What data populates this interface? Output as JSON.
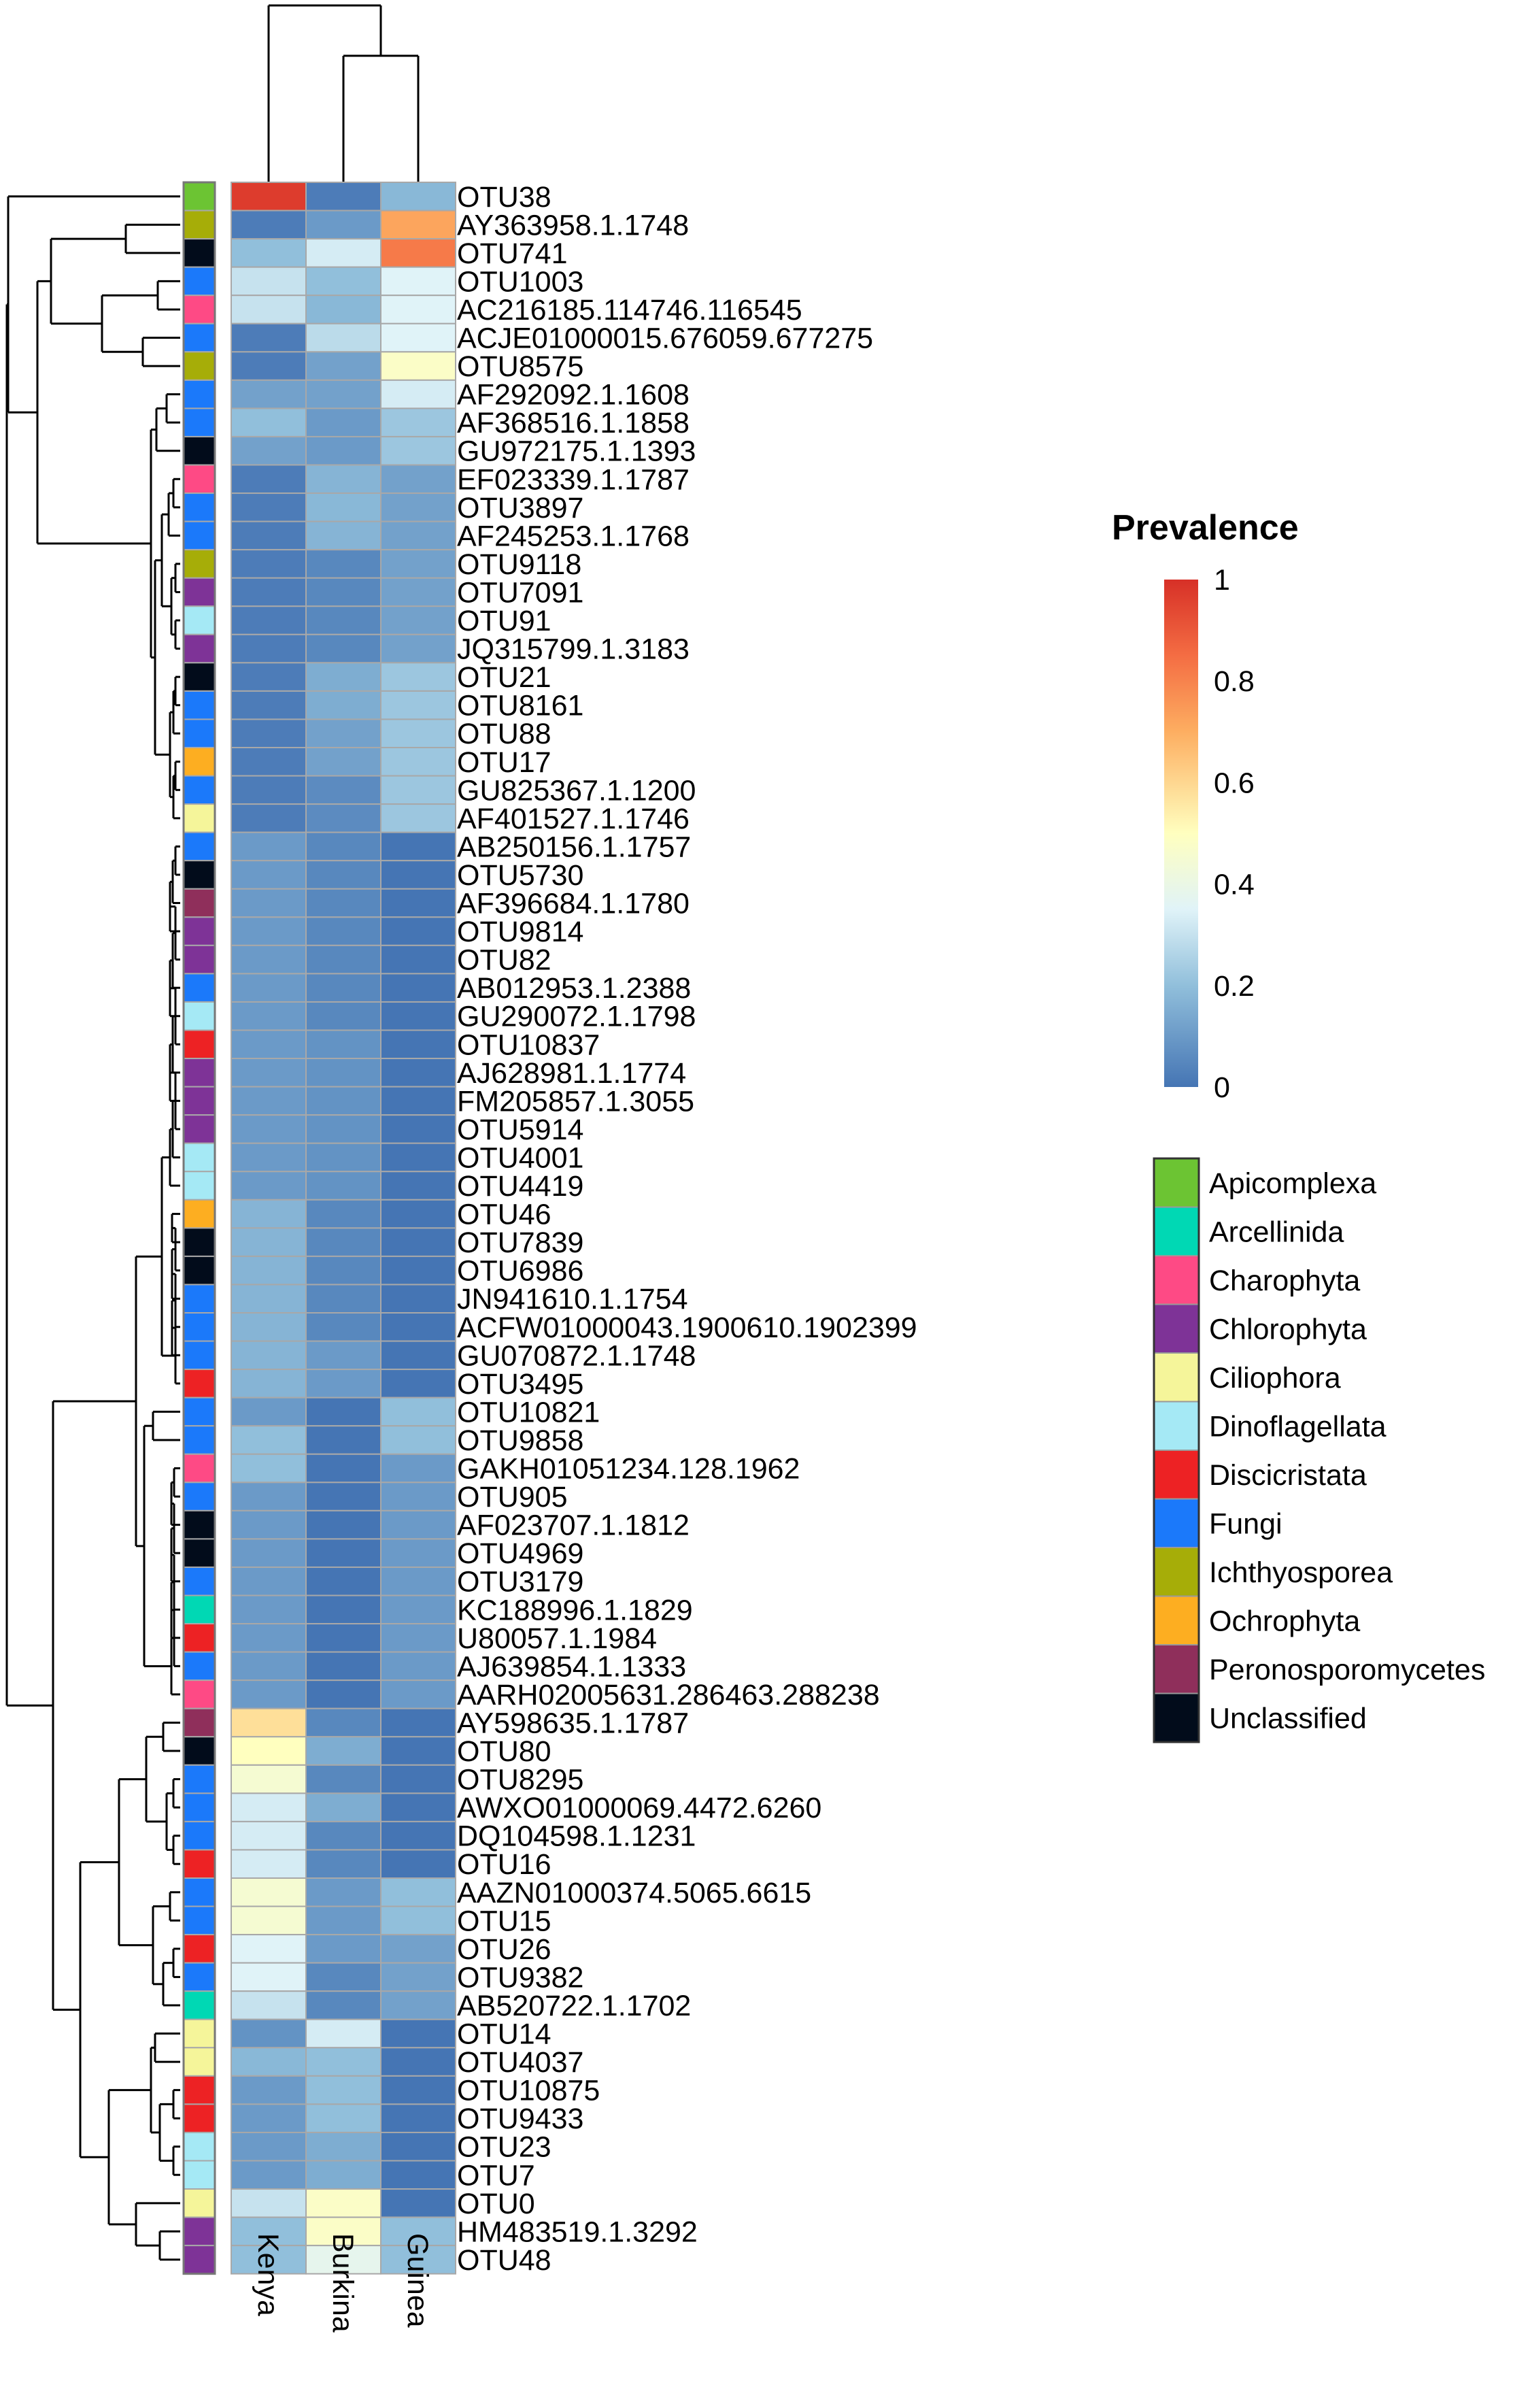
{
  "chart_data": {
    "type": "heatmap",
    "title": "",
    "columns": [
      "Kenya",
      "Burkina",
      "Guinea"
    ],
    "legend_title": "Prevalence",
    "color_scale": {
      "range": [
        0,
        1
      ],
      "tick_labels": [
        "0",
        "0.2",
        "0.4",
        "0.6",
        "0.8",
        "1"
      ],
      "stops": [
        {
          "value": 0.0,
          "color": "#4575b4"
        },
        {
          "value": 0.2,
          "color": "#91bfdb"
        },
        {
          "value": 0.35,
          "color": "#e0f3f8"
        },
        {
          "value": 0.5,
          "color": "#ffffbf"
        },
        {
          "value": 0.7,
          "color": "#fdae61"
        },
        {
          "value": 0.85,
          "color": "#f46d43"
        },
        {
          "value": 1.0,
          "color": "#d73027"
        }
      ]
    },
    "groups": [
      {
        "name": "Apicomplexa",
        "color": "#6cc433"
      },
      {
        "name": "Arcellinida",
        "color": "#00d8b4"
      },
      {
        "name": "Charophyta",
        "color": "#fe4a85"
      },
      {
        "name": "Chlorophyta",
        "color": "#7e3397"
      },
      {
        "name": "Ciliophora",
        "color": "#f5f59a"
      },
      {
        "name": "Dinoflagellata",
        "color": "#a5e9f5"
      },
      {
        "name": "Discicristata",
        "color": "#ed2224"
      },
      {
        "name": "Fungi",
        "color": "#1b79fa"
      },
      {
        "name": "Ichthyosporea",
        "color": "#a6ad08"
      },
      {
        "name": "Ochrophyta",
        "color": "#fdae21"
      },
      {
        "name": "Peronosporomycetes",
        "color": "#8f2f5b"
      },
      {
        "name": "Unclassified",
        "color": "#020c1b"
      }
    ],
    "rows": [
      {
        "name": "OTU38",
        "group": "Apicomplexa",
        "values": [
          0.97,
          0.02,
          0.18
        ]
      },
      {
        "name": "AY363958.1.1748",
        "group": "Ichthyosporea",
        "values": [
          0.02,
          0.1,
          0.72
        ]
      },
      {
        "name": "OTU741",
        "group": "Unclassified",
        "values": [
          0.2,
          0.33,
          0.82
        ]
      },
      {
        "name": "OTU1003",
        "group": "Fungi",
        "values": [
          0.3,
          0.2,
          0.35
        ]
      },
      {
        "name": "AC216185.114746.116545",
        "group": "Charophyta",
        "values": [
          0.3,
          0.18,
          0.35
        ]
      },
      {
        "name": "ACJE01000015.676059.677275",
        "group": "Fungi",
        "values": [
          0.02,
          0.28,
          0.35
        ]
      },
      {
        "name": "OTU8575",
        "group": "Ichthyosporea",
        "values": [
          0.02,
          0.12,
          0.48
        ]
      },
      {
        "name": "AF292092.1.1608",
        "group": "Fungi",
        "values": [
          0.12,
          0.12,
          0.33
        ]
      },
      {
        "name": "AF368516.1.1858",
        "group": "Fungi",
        "values": [
          0.2,
          0.1,
          0.22
        ]
      },
      {
        "name": "GU972175.1.1393",
        "group": "Unclassified",
        "values": [
          0.12,
          0.1,
          0.22
        ]
      },
      {
        "name": "EF023339.1.1787",
        "group": "Charophyta",
        "values": [
          0.02,
          0.17,
          0.12
        ]
      },
      {
        "name": "OTU3897",
        "group": "Fungi",
        "values": [
          0.02,
          0.18,
          0.12
        ]
      },
      {
        "name": "AF245253.1.1768",
        "group": "Fungi",
        "values": [
          0.02,
          0.17,
          0.12
        ]
      },
      {
        "name": "OTU9118",
        "group": "Ichthyosporea",
        "values": [
          0.02,
          0.05,
          0.12
        ]
      },
      {
        "name": "OTU7091",
        "group": "Chlorophyta",
        "values": [
          0.02,
          0.05,
          0.12
        ]
      },
      {
        "name": "OTU91",
        "group": "Dinoflagellata",
        "values": [
          0.02,
          0.05,
          0.12
        ]
      },
      {
        "name": "JQ315799.1.3183",
        "group": "Chlorophyta",
        "values": [
          0.02,
          0.05,
          0.12
        ]
      },
      {
        "name": "OTU21",
        "group": "Unclassified",
        "values": [
          0.02,
          0.15,
          0.22
        ]
      },
      {
        "name": "OTU8161",
        "group": "Fungi",
        "values": [
          0.02,
          0.15,
          0.22
        ]
      },
      {
        "name": "OTU88",
        "group": "Fungi",
        "values": [
          0.02,
          0.12,
          0.22
        ]
      },
      {
        "name": "OTU17",
        "group": "Ochrophyta",
        "values": [
          0.02,
          0.12,
          0.22
        ]
      },
      {
        "name": "GU825367.1.1200",
        "group": "Fungi",
        "values": [
          0.02,
          0.06,
          0.22
        ]
      },
      {
        "name": "AF401527.1.1746",
        "group": "Ciliophora",
        "values": [
          0.02,
          0.06,
          0.22
        ]
      },
      {
        "name": "AB250156.1.1757",
        "group": "Fungi",
        "values": [
          0.1,
          0.05,
          0.0
        ]
      },
      {
        "name": "OTU5730",
        "group": "Unclassified",
        "values": [
          0.1,
          0.05,
          0.0
        ]
      },
      {
        "name": "AF396684.1.1780",
        "group": "Peronosporomycetes",
        "values": [
          0.1,
          0.05,
          0.0
        ]
      },
      {
        "name": "OTU9814",
        "group": "Chlorophyta",
        "values": [
          0.1,
          0.05,
          0.0
        ]
      },
      {
        "name": "OTU82",
        "group": "Chlorophyta",
        "values": [
          0.1,
          0.05,
          0.0
        ]
      },
      {
        "name": "AB012953.1.2388",
        "group": "Fungi",
        "values": [
          0.1,
          0.05,
          0.0
        ]
      },
      {
        "name": "GU290072.1.1798",
        "group": "Dinoflagellata",
        "values": [
          0.1,
          0.05,
          0.0
        ]
      },
      {
        "name": "OTU10837",
        "group": "Discicristata",
        "values": [
          0.1,
          0.08,
          0.0
        ]
      },
      {
        "name": "AJ628981.1.1774",
        "group": "Chlorophyta",
        "values": [
          0.1,
          0.08,
          0.0
        ]
      },
      {
        "name": "FM205857.1.3055",
        "group": "Chlorophyta",
        "values": [
          0.1,
          0.08,
          0.0
        ]
      },
      {
        "name": "OTU5914",
        "group": "Chlorophyta",
        "values": [
          0.1,
          0.08,
          0.0
        ]
      },
      {
        "name": "OTU4001",
        "group": "Dinoflagellata",
        "values": [
          0.1,
          0.08,
          0.0
        ]
      },
      {
        "name": "OTU4419",
        "group": "Dinoflagellata",
        "values": [
          0.1,
          0.08,
          0.0
        ]
      },
      {
        "name": "OTU46",
        "group": "Ochrophyta",
        "values": [
          0.17,
          0.05,
          0.0
        ]
      },
      {
        "name": "OTU7839",
        "group": "Unclassified",
        "values": [
          0.17,
          0.05,
          0.0
        ]
      },
      {
        "name": "OTU6986",
        "group": "Unclassified",
        "values": [
          0.17,
          0.05,
          0.0
        ]
      },
      {
        "name": "JN941610.1.1754",
        "group": "Fungi",
        "values": [
          0.17,
          0.05,
          0.0
        ]
      },
      {
        "name": "ACFW01000043.1900610.1902399",
        "group": "Fungi",
        "values": [
          0.17,
          0.05,
          0.0
        ]
      },
      {
        "name": "GU070872.1.1748",
        "group": "Fungi",
        "values": [
          0.17,
          0.1,
          0.0
        ]
      },
      {
        "name": "OTU3495",
        "group": "Discicristata",
        "values": [
          0.17,
          0.1,
          0.0
        ]
      },
      {
        "name": "OTU10821",
        "group": "Fungi",
        "values": [
          0.1,
          0.0,
          0.2
        ]
      },
      {
        "name": "OTU9858",
        "group": "Fungi",
        "values": [
          0.2,
          0.0,
          0.2
        ]
      },
      {
        "name": "GAKH01051234.128.1962",
        "group": "Charophyta",
        "values": [
          0.2,
          0.0,
          0.1
        ]
      },
      {
        "name": "OTU905",
        "group": "Fungi",
        "values": [
          0.1,
          0.0,
          0.1
        ]
      },
      {
        "name": "AF023707.1.1812",
        "group": "Unclassified",
        "values": [
          0.1,
          0.0,
          0.1
        ]
      },
      {
        "name": "OTU4969",
        "group": "Unclassified",
        "values": [
          0.1,
          0.0,
          0.1
        ]
      },
      {
        "name": "OTU3179",
        "group": "Fungi",
        "values": [
          0.1,
          0.0,
          0.1
        ]
      },
      {
        "name": "KC188996.1.1829",
        "group": "Arcellinida",
        "values": [
          0.1,
          0.0,
          0.1
        ]
      },
      {
        "name": "U80057.1.1984",
        "group": "Discicristata",
        "values": [
          0.1,
          0.0,
          0.1
        ]
      },
      {
        "name": "AJ639854.1.1333",
        "group": "Fungi",
        "values": [
          0.1,
          0.0,
          0.1
        ]
      },
      {
        "name": "AARH02005631.286463.288238",
        "group": "Charophyta",
        "values": [
          0.1,
          0.0,
          0.1
        ]
      },
      {
        "name": "AY598635.1.1787",
        "group": "Peronosporomycetes",
        "values": [
          0.58,
          0.05,
          0.0
        ]
      },
      {
        "name": "OTU80",
        "group": "Unclassified",
        "values": [
          0.5,
          0.15,
          0.0
        ]
      },
      {
        "name": "OTU8295",
        "group": "Fungi",
        "values": [
          0.45,
          0.05,
          0.0
        ]
      },
      {
        "name": "AWXO01000069.4472.6260",
        "group": "Fungi",
        "values": [
          0.33,
          0.15,
          0.0
        ]
      },
      {
        "name": "DQ104598.1.1231",
        "group": "Fungi",
        "values": [
          0.33,
          0.05,
          0.0
        ]
      },
      {
        "name": "OTU16",
        "group": "Discicristata",
        "values": [
          0.33,
          0.05,
          0.0
        ]
      },
      {
        "name": "AAZN01000374.5065.6615",
        "group": "Fungi",
        "values": [
          0.45,
          0.1,
          0.2
        ]
      },
      {
        "name": "OTU15",
        "group": "Fungi",
        "values": [
          0.45,
          0.1,
          0.2
        ]
      },
      {
        "name": "OTU26",
        "group": "Discicristata",
        "values": [
          0.35,
          0.1,
          0.12
        ]
      },
      {
        "name": "OTU9382",
        "group": "Fungi",
        "values": [
          0.35,
          0.05,
          0.12
        ]
      },
      {
        "name": "AB520722.1.1702",
        "group": "Arcellinida",
        "values": [
          0.3,
          0.05,
          0.12
        ]
      },
      {
        "name": "OTU14",
        "group": "Ciliophora",
        "values": [
          0.08,
          0.33,
          0.0
        ]
      },
      {
        "name": "OTU4037",
        "group": "Ciliophora",
        "values": [
          0.18,
          0.2,
          0.0
        ]
      },
      {
        "name": "OTU10875",
        "group": "Discicristata",
        "values": [
          0.1,
          0.2,
          0.0
        ]
      },
      {
        "name": "OTU9433",
        "group": "Discicristata",
        "values": [
          0.1,
          0.2,
          0.0
        ]
      },
      {
        "name": "OTU23",
        "group": "Dinoflagellata",
        "values": [
          0.1,
          0.15,
          0.0
        ]
      },
      {
        "name": "OTU7",
        "group": "Dinoflagellata",
        "values": [
          0.1,
          0.15,
          0.0
        ]
      },
      {
        "name": "OTU0",
        "group": "Ciliophora",
        "values": [
          0.3,
          0.48,
          0.0
        ]
      },
      {
        "name": "HM483519.1.3292",
        "group": "Chlorophyta",
        "values": [
          0.2,
          0.48,
          0.2
        ]
      },
      {
        "name": "OTU48",
        "group": "Chlorophyta",
        "values": [
          0.2,
          0.38,
          0.2
        ]
      }
    ]
  }
}
